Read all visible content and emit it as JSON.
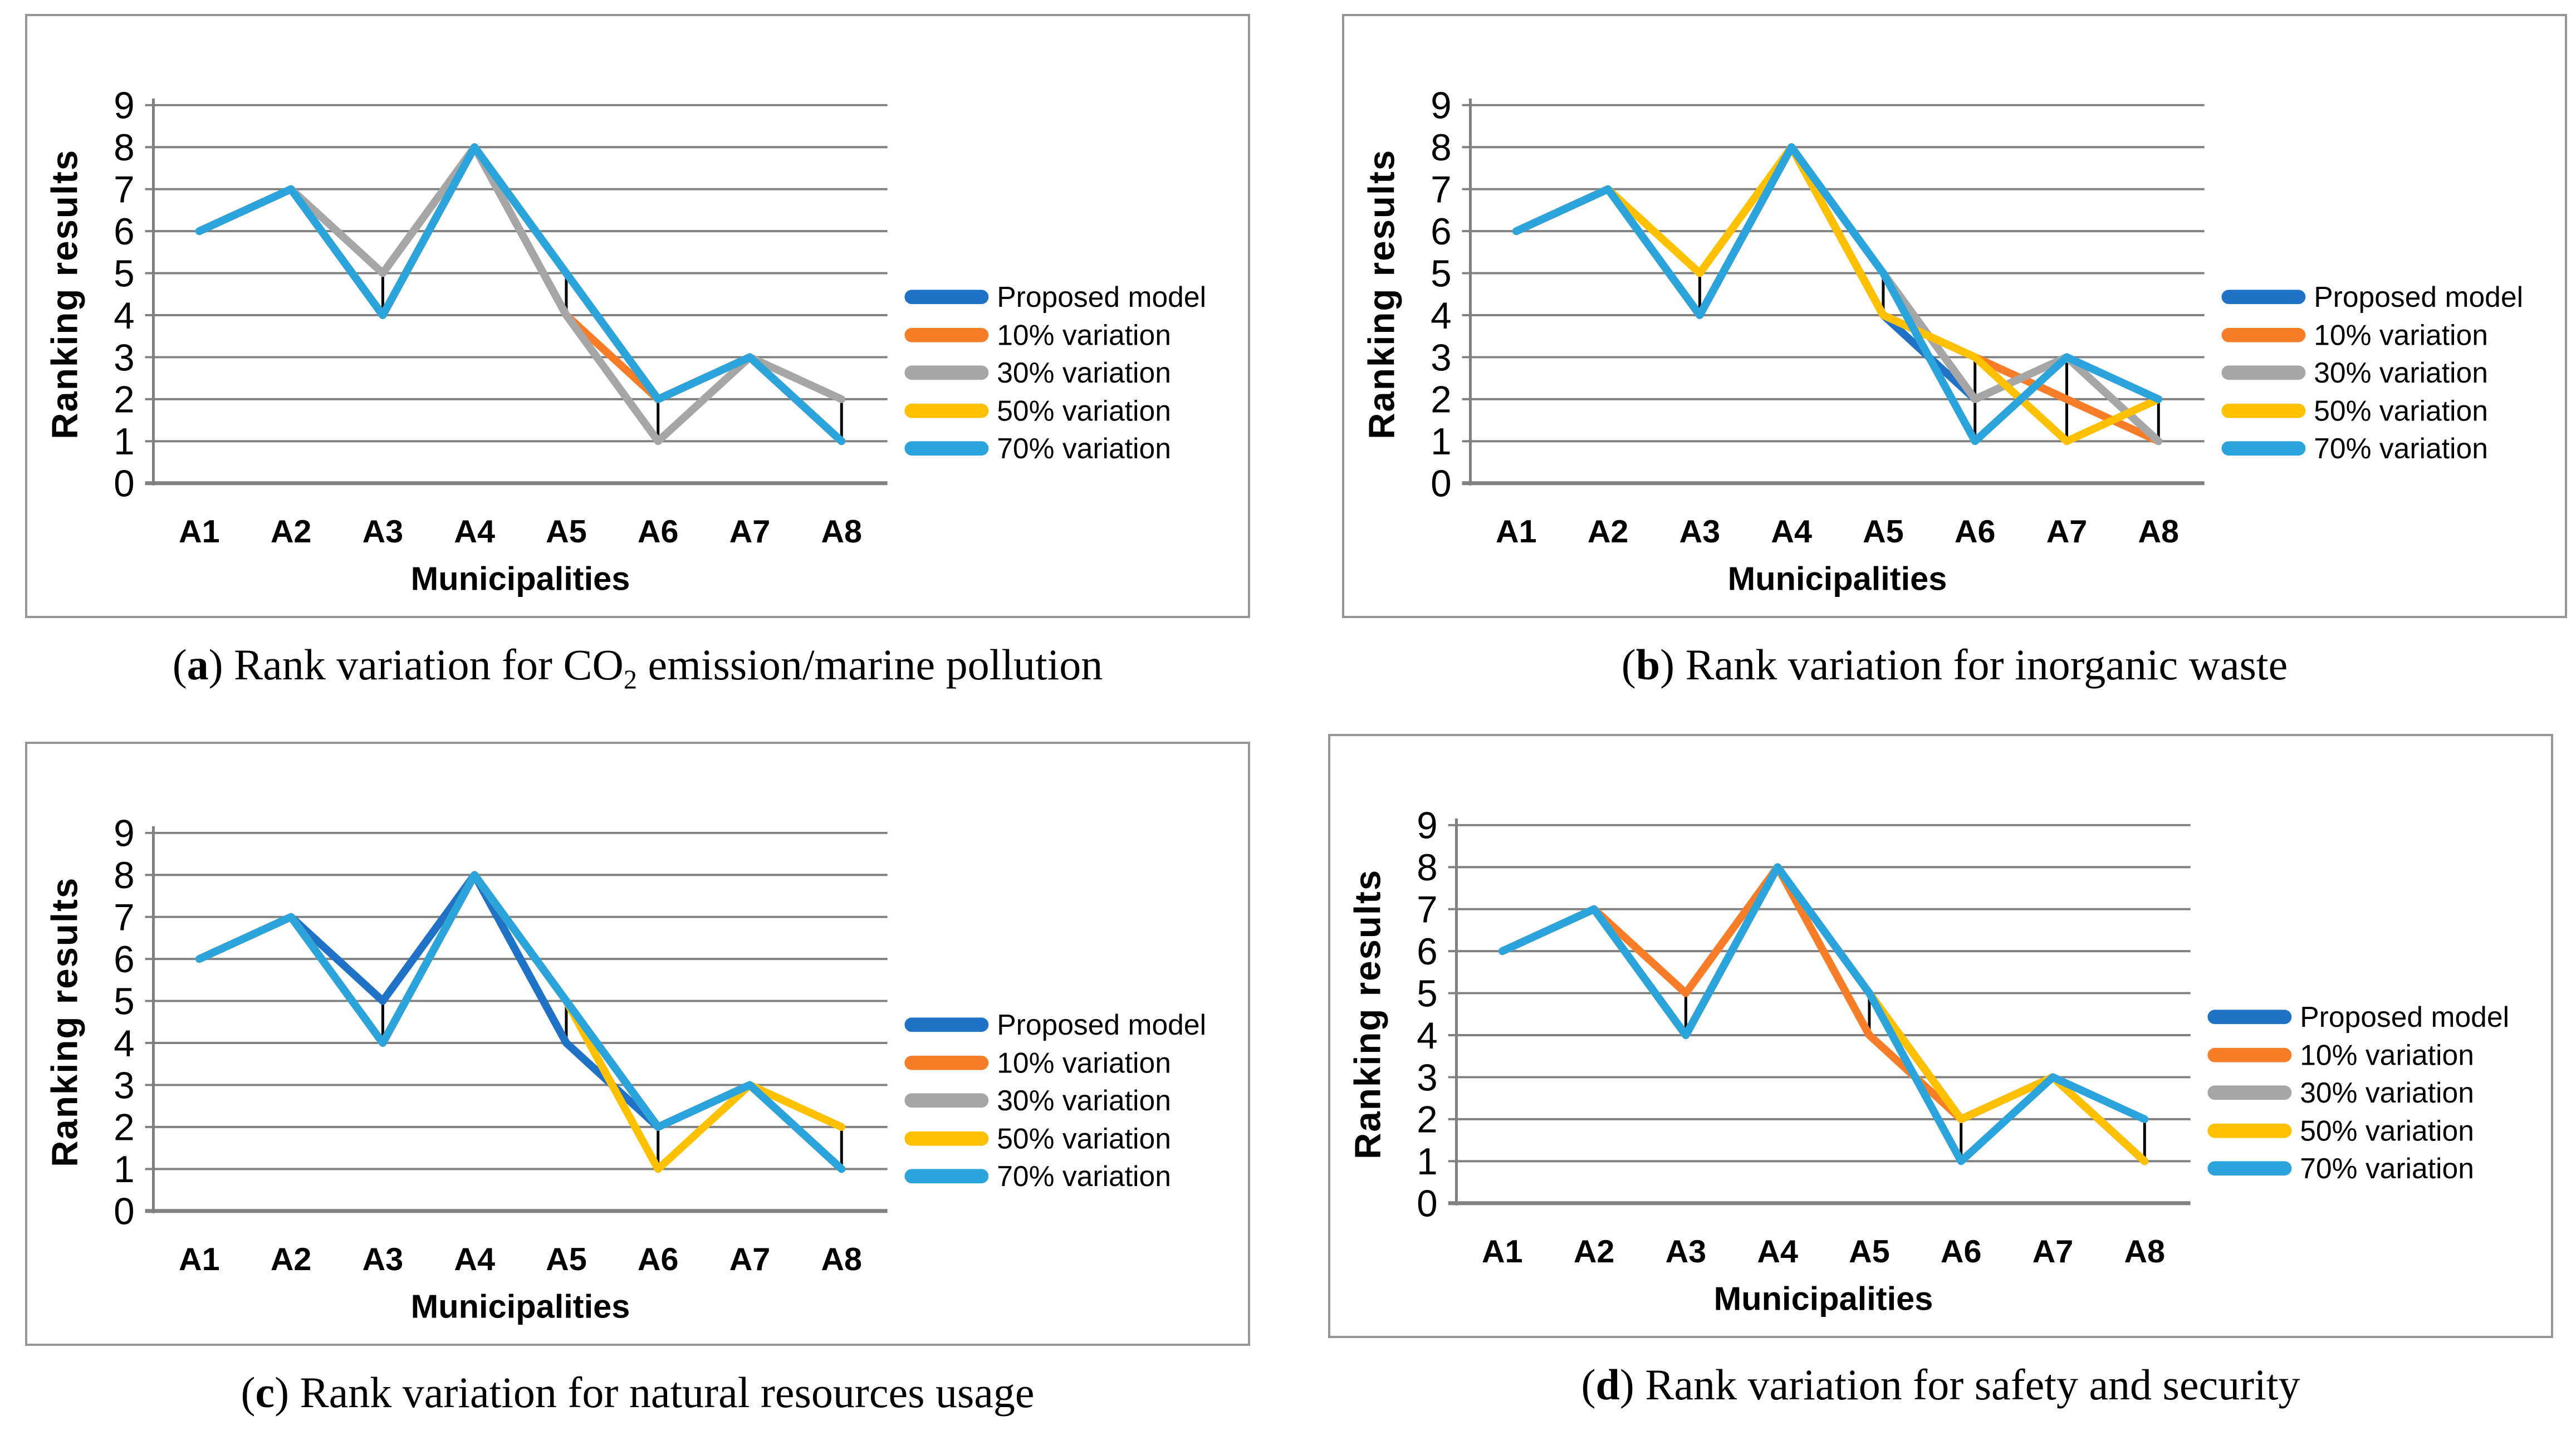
{
  "shared": {
    "y_axis_label": "Ranking results",
    "x_axis_label": "Municipalities",
    "categories": [
      "A1",
      "A2",
      "A3",
      "A4",
      "A5",
      "A6",
      "A7",
      "A8"
    ],
    "y_ticks": [
      "0",
      "1",
      "2",
      "3",
      "4",
      "5",
      "6",
      "7",
      "8",
      "9"
    ],
    "legend_labels": [
      "Proposed model",
      "10% variation",
      "30% variation",
      "50% variation",
      "70% variation"
    ],
    "colors": {
      "proposed": "#1F72C6",
      "variation_10": "#F87D28",
      "variation_30": "#A6A6A6",
      "variation_50": "#FFC000",
      "variation_70": "#2BA4DC",
      "gridline": "#808080",
      "high_low_line": "#000000",
      "box_border": "#969696",
      "text": "#000000"
    }
  },
  "captions": {
    "a": {
      "open": "(",
      "letter": "a",
      "close": ") ",
      "pre": "Rank variation for CO",
      "sub": "2",
      "post": " emission/marine pollution"
    },
    "b": {
      "open": "(",
      "letter": "b",
      "close": ") ",
      "pre": "Rank variation for inorganic waste",
      "sub": "",
      "post": ""
    },
    "c": {
      "open": "(",
      "letter": "c",
      "close": ") ",
      "pre": "Rank variation for natural resources usage",
      "sub": "",
      "post": ""
    },
    "d": {
      "open": "(",
      "letter": "d",
      "close": ") ",
      "pre": "Rank variation for safety and security",
      "sub": "",
      "post": ""
    }
  },
  "chart_data": [
    {
      "id": "a",
      "type": "line",
      "title": "(a) Rank variation for CO2 emission/marine pollution",
      "xlabel": "Municipalities",
      "ylabel": "Ranking results",
      "ylim": [
        0,
        9
      ],
      "grid": true,
      "legend_position": "right",
      "categories": [
        "A1",
        "A2",
        "A3",
        "A4",
        "A5",
        "A6",
        "A7",
        "A8"
      ],
      "series": [
        {
          "name": "Proposed model",
          "color": "#1F72C6",
          "values": [
            6,
            7,
            4,
            8,
            5,
            2,
            3,
            1
          ]
        },
        {
          "name": "10% variation",
          "color": "#F87D28",
          "values": [
            6,
            7,
            4,
            8,
            4,
            2,
            3,
            1
          ]
        },
        {
          "name": "30% variation",
          "color": "#A6A6A6",
          "values": [
            6,
            7,
            5,
            8,
            4,
            1,
            3,
            2
          ]
        },
        {
          "name": "50% variation",
          "color": "#FFC000",
          "values": [
            6,
            7,
            4,
            8,
            5,
            2,
            3,
            1
          ]
        },
        {
          "name": "70% variation",
          "color": "#2BA4DC",
          "values": [
            6,
            7,
            4,
            8,
            5,
            2,
            3,
            1
          ]
        }
      ],
      "high_low_lines": [
        {
          "category": "A3",
          "low": 4,
          "high": 5
        },
        {
          "category": "A5",
          "low": 4,
          "high": 5
        },
        {
          "category": "A6",
          "low": 1,
          "high": 2
        },
        {
          "category": "A8",
          "low": 1,
          "high": 2
        }
      ]
    },
    {
      "id": "b",
      "type": "line",
      "title": "(b) Rank variation for inorganic waste",
      "xlabel": "Municipalities",
      "ylabel": "Ranking results",
      "ylim": [
        0,
        9
      ],
      "grid": true,
      "legend_position": "right",
      "categories": [
        "A1",
        "A2",
        "A3",
        "A4",
        "A5",
        "A6",
        "A7",
        "A8"
      ],
      "series": [
        {
          "name": "Proposed model",
          "color": "#1F72C6",
          "values": [
            6,
            7,
            4,
            8,
            4,
            2,
            3,
            1
          ]
        },
        {
          "name": "10% variation",
          "color": "#F87D28",
          "values": [
            6,
            7,
            4,
            8,
            4,
            3,
            2,
            1
          ]
        },
        {
          "name": "30% variation",
          "color": "#A6A6A6",
          "values": [
            6,
            7,
            4,
            8,
            5,
            2,
            3,
            1
          ]
        },
        {
          "name": "50% variation",
          "color": "#FFC000",
          "values": [
            6,
            7,
            5,
            8,
            4,
            3,
            1,
            2
          ]
        },
        {
          "name": "70% variation",
          "color": "#2BA4DC",
          "values": [
            6,
            7,
            4,
            8,
            5,
            1,
            3,
            2
          ]
        }
      ],
      "high_low_lines": [
        {
          "category": "A3",
          "low": 4,
          "high": 5
        },
        {
          "category": "A5",
          "low": 4,
          "high": 5
        },
        {
          "category": "A6",
          "low": 1,
          "high": 3
        },
        {
          "category": "A7",
          "low": 1,
          "high": 3
        },
        {
          "category": "A8",
          "low": 1,
          "high": 2
        }
      ]
    },
    {
      "id": "c",
      "type": "line",
      "title": "(c) Rank variation for natural resources usage",
      "xlabel": "Municipalities",
      "ylabel": "Ranking results",
      "ylim": [
        0,
        9
      ],
      "grid": true,
      "legend_position": "right",
      "categories": [
        "A1",
        "A2",
        "A3",
        "A4",
        "A5",
        "A6",
        "A7",
        "A8"
      ],
      "series": [
        {
          "name": "Proposed model",
          "color": "#1F72C6",
          "values": [
            6,
            7,
            5,
            8,
            4,
            2,
            3,
            1
          ]
        },
        {
          "name": "10% variation",
          "color": "#F87D28",
          "values": [
            6,
            7,
            4,
            8,
            5,
            2,
            3,
            1
          ]
        },
        {
          "name": "30% variation",
          "color": "#A6A6A6",
          "values": [
            6,
            7,
            4,
            8,
            5,
            2,
            3,
            1
          ]
        },
        {
          "name": "50% variation",
          "color": "#FFC000",
          "values": [
            6,
            7,
            4,
            8,
            5,
            1,
            3,
            2
          ]
        },
        {
          "name": "70% variation",
          "color": "#2BA4DC",
          "values": [
            6,
            7,
            4,
            8,
            5,
            2,
            3,
            1
          ]
        }
      ],
      "high_low_lines": [
        {
          "category": "A3",
          "low": 4,
          "high": 5
        },
        {
          "category": "A5",
          "low": 4,
          "high": 5
        },
        {
          "category": "A6",
          "low": 1,
          "high": 2
        },
        {
          "category": "A8",
          "low": 1,
          "high": 2
        }
      ]
    },
    {
      "id": "d",
      "type": "line",
      "title": "(d) Rank variation for safety and security",
      "xlabel": "Municipalities",
      "ylabel": "Ranking results",
      "ylim": [
        0,
        9
      ],
      "grid": true,
      "legend_position": "right",
      "categories": [
        "A1",
        "A2",
        "A3",
        "A4",
        "A5",
        "A6",
        "A7",
        "A8"
      ],
      "series": [
        {
          "name": "Proposed model",
          "color": "#1F72C6",
          "values": [
            6,
            7,
            4,
            8,
            5,
            2,
            3,
            1
          ]
        },
        {
          "name": "10% variation",
          "color": "#F87D28",
          "values": [
            6,
            7,
            5,
            8,
            4,
            2,
            3,
            1
          ]
        },
        {
          "name": "30% variation",
          "color": "#A6A6A6",
          "values": [
            6,
            7,
            4,
            8,
            5,
            2,
            3,
            1
          ]
        },
        {
          "name": "50% variation",
          "color": "#FFC000",
          "values": [
            6,
            7,
            4,
            8,
            5,
            2,
            3,
            1
          ]
        },
        {
          "name": "70% variation",
          "color": "#2BA4DC",
          "values": [
            6,
            7,
            4,
            8,
            5,
            1,
            3,
            2
          ]
        }
      ],
      "high_low_lines": [
        {
          "category": "A3",
          "low": 4,
          "high": 5
        },
        {
          "category": "A5",
          "low": 4,
          "high": 5
        },
        {
          "category": "A6",
          "low": 1,
          "high": 2
        },
        {
          "category": "A8",
          "low": 1,
          "high": 2
        }
      ]
    }
  ]
}
